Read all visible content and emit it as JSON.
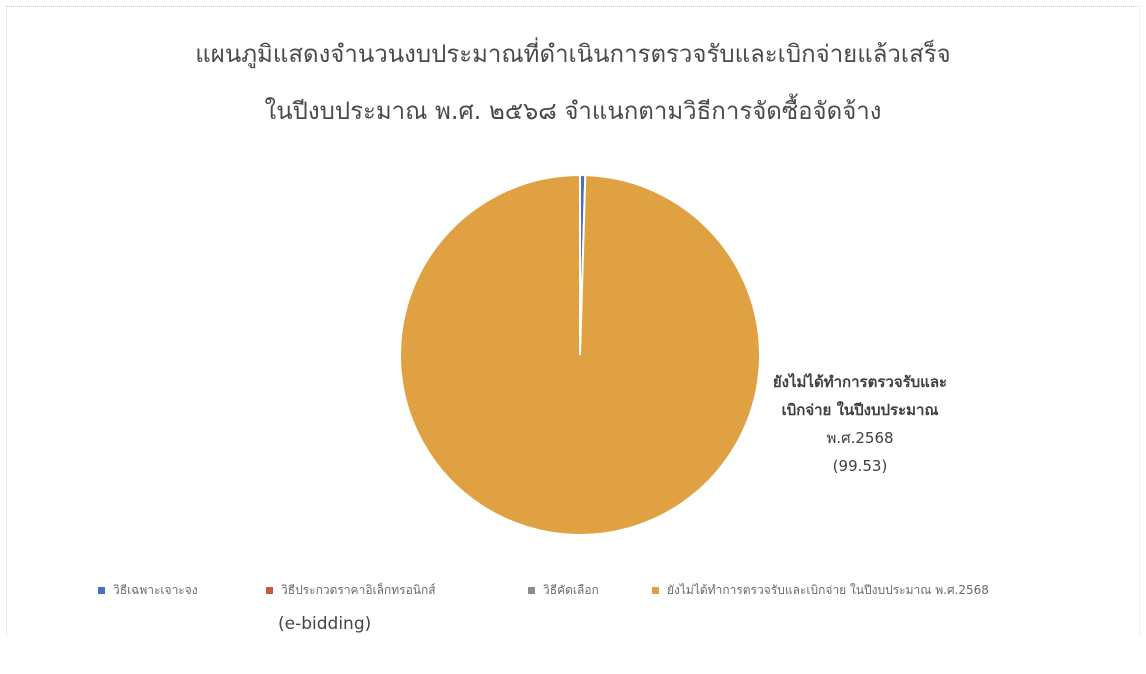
{
  "chart_data": {
    "type": "pie",
    "title": "แผนภูมิแสดงจำนวนงบประมาณที่ดำเนินการตรวจรับและเบิกจ่ายแล้วเสร็จ",
    "subtitle": "ในปีงบประมาณ พ.ศ. ๒๕๖๘ จำแนกตามวิธีการจัดซื้อจัดจ้าง",
    "slices": [
      {
        "label": "วิธีเฉพาะเจาะจง",
        "value": 0.47,
        "color": "#4472c4"
      },
      {
        "label": "วิธีประกวดราคาอิเล็กทรอนิกส์ (e-bidding)",
        "value": 0,
        "color": "#c65a3a"
      },
      {
        "label": "วิธีคัดเลือก",
        "value": 0,
        "color": "#8c8c8c"
      },
      {
        "label": "ยังไม่ได้ทำการตรวจรับและเบิกจ่าย ในปีงบประมาณ พ.ศ.2568",
        "value": 99.53,
        "color": "#e0a143"
      }
    ],
    "data_label": {
      "lines": [
        "ยังไม่ได้ทำการตรวจรับและ",
        "เบิกจ่าย ในปีงบประมาณ",
        "พ.ศ.2568"
      ],
      "value_text": "(99.53)"
    },
    "legend": {
      "placement": "bottom",
      "items": [
        {
          "label": "วิธีเฉพาะเจาะจง",
          "color": "#4472c4"
        },
        {
          "label": "วิธีประกวดราคาอิเล็กทรอนิกส์",
          "color": "#c65a3a",
          "wrap": "(e-bidding)"
        },
        {
          "label": "วิธีคัดเลือก",
          "color": "#8c8c8c"
        },
        {
          "label": "ยังไม่ได้ทำการตรวจรับและเบิกจ่าย ในปีงบประมาณ พ.ศ.2568",
          "color": "#e0a143"
        }
      ]
    }
  }
}
